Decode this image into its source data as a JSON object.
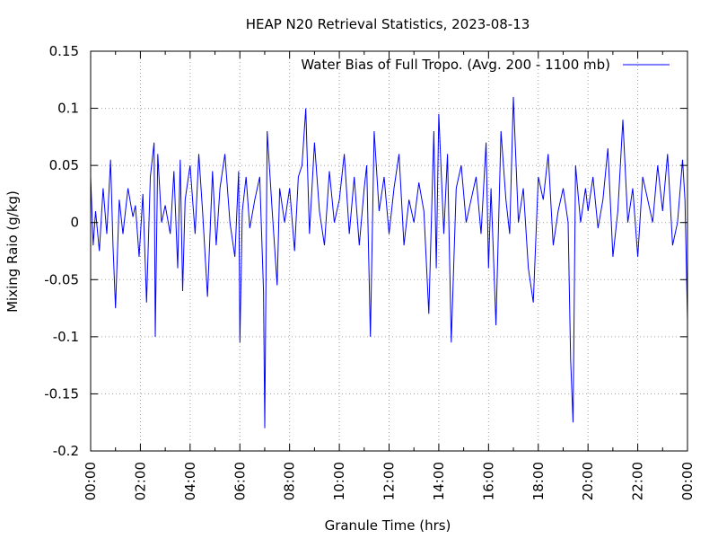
{
  "chart_data": {
    "type": "line",
    "title": "HEAP N20 Retrieval Statistics, 2023-08-13",
    "xlabel": "Granule Time (hrs)",
    "ylabel": "Mixing Raio (g/kg)",
    "xlim": [
      0,
      24
    ],
    "ylim": [
      -0.2,
      0.15
    ],
    "x_tick_labels": [
      "00:00",
      "02:00",
      "04:00",
      "06:00",
      "08:00",
      "10:00",
      "12:00",
      "14:00",
      "16:00",
      "18:00",
      "20:00",
      "22:00",
      "00:00"
    ],
    "y_tick_labels": [
      "0.15",
      "0.1",
      "0.05",
      "0",
      "-0.05",
      "-0.1",
      "-0.15",
      "-0.2"
    ],
    "grid": true,
    "legend_position": "top-right",
    "series": [
      {
        "name": "Water Bias of Full Tropo. (Avg. 200 - 1100 mb)",
        "color": "#0000ff",
        "x": [
          0.0,
          0.1,
          0.2,
          0.35,
          0.5,
          0.65,
          0.8,
          0.9,
          1.0,
          1.15,
          1.3,
          1.5,
          1.7,
          1.8,
          1.95,
          2.1,
          2.25,
          2.4,
          2.55,
          2.6,
          2.7,
          2.85,
          3.0,
          3.2,
          3.35,
          3.5,
          3.6,
          3.7,
          3.8,
          4.0,
          4.2,
          4.35,
          4.5,
          4.7,
          4.9,
          5.05,
          5.2,
          5.4,
          5.6,
          5.8,
          5.95,
          6.0,
          6.1,
          6.25,
          6.4,
          6.6,
          6.8,
          6.95,
          7.0,
          7.1,
          7.3,
          7.5,
          7.6,
          7.8,
          8.0,
          8.2,
          8.35,
          8.5,
          8.65,
          8.8,
          9.0,
          9.2,
          9.4,
          9.6,
          9.8,
          10.0,
          10.2,
          10.4,
          10.6,
          10.8,
          11.0,
          11.1,
          11.25,
          11.4,
          11.6,
          11.8,
          12.0,
          12.2,
          12.4,
          12.6,
          12.8,
          13.0,
          13.2,
          13.4,
          13.6,
          13.8,
          13.9,
          14.0,
          14.2,
          14.35,
          14.5,
          14.7,
          14.9,
          15.1,
          15.3,
          15.5,
          15.7,
          15.9,
          16.0,
          16.1,
          16.3,
          16.5,
          16.7,
          16.85,
          17.0,
          17.2,
          17.4,
          17.6,
          17.8,
          18.0,
          18.2,
          18.4,
          18.6,
          18.8,
          19.0,
          19.2,
          19.3,
          19.4,
          19.5,
          19.7,
          19.9,
          20.0,
          20.2,
          20.4,
          20.6,
          20.8,
          21.0,
          21.2,
          21.4,
          21.6,
          21.8,
          22.0,
          22.2,
          22.4,
          22.6,
          22.8,
          23.0,
          23.2,
          23.4,
          23.6,
          23.8,
          23.9,
          24.0
        ],
        "y": [
          0.04,
          -0.02,
          0.01,
          -0.025,
          0.03,
          -0.01,
          0.055,
          -0.02,
          -0.075,
          0.02,
          -0.01,
          0.03,
          0.005,
          0.015,
          -0.03,
          0.025,
          -0.07,
          0.04,
          0.07,
          -0.1,
          0.06,
          0.0,
          0.015,
          -0.01,
          0.045,
          -0.04,
          0.055,
          -0.06,
          0.02,
          0.05,
          -0.01,
          0.06,
          0.01,
          -0.065,
          0.045,
          -0.02,
          0.03,
          0.06,
          0.0,
          -0.03,
          0.045,
          -0.105,
          0.01,
          0.04,
          -0.005,
          0.02,
          0.04,
          -0.06,
          -0.18,
          0.08,
          0.01,
          -0.055,
          0.03,
          0.0,
          0.03,
          -0.025,
          0.04,
          0.05,
          0.1,
          -0.01,
          0.07,
          0.01,
          -0.02,
          0.045,
          0.0,
          0.02,
          0.06,
          -0.01,
          0.04,
          -0.02,
          0.03,
          0.05,
          -0.1,
          0.08,
          0.01,
          0.04,
          -0.01,
          0.03,
          0.06,
          -0.02,
          0.02,
          0.0,
          0.035,
          0.01,
          -0.08,
          0.08,
          -0.04,
          0.095,
          -0.01,
          0.06,
          -0.105,
          0.03,
          0.05,
          0.0,
          0.02,
          0.04,
          -0.01,
          0.07,
          -0.04,
          0.03,
          -0.09,
          0.08,
          0.02,
          -0.01,
          0.11,
          0.0,
          0.03,
          -0.04,
          -0.07,
          0.04,
          0.02,
          0.06,
          -0.02,
          0.01,
          0.03,
          0.0,
          -0.12,
          -0.175,
          0.05,
          0.0,
          0.03,
          0.01,
          0.04,
          -0.005,
          0.02,
          0.065,
          -0.03,
          0.01,
          0.09,
          0.0,
          0.03,
          -0.03,
          0.04,
          0.02,
          0.0,
          0.05,
          0.01,
          0.06,
          -0.02,
          0.0,
          0.055,
          0.02,
          -0.085
        ]
      }
    ]
  }
}
